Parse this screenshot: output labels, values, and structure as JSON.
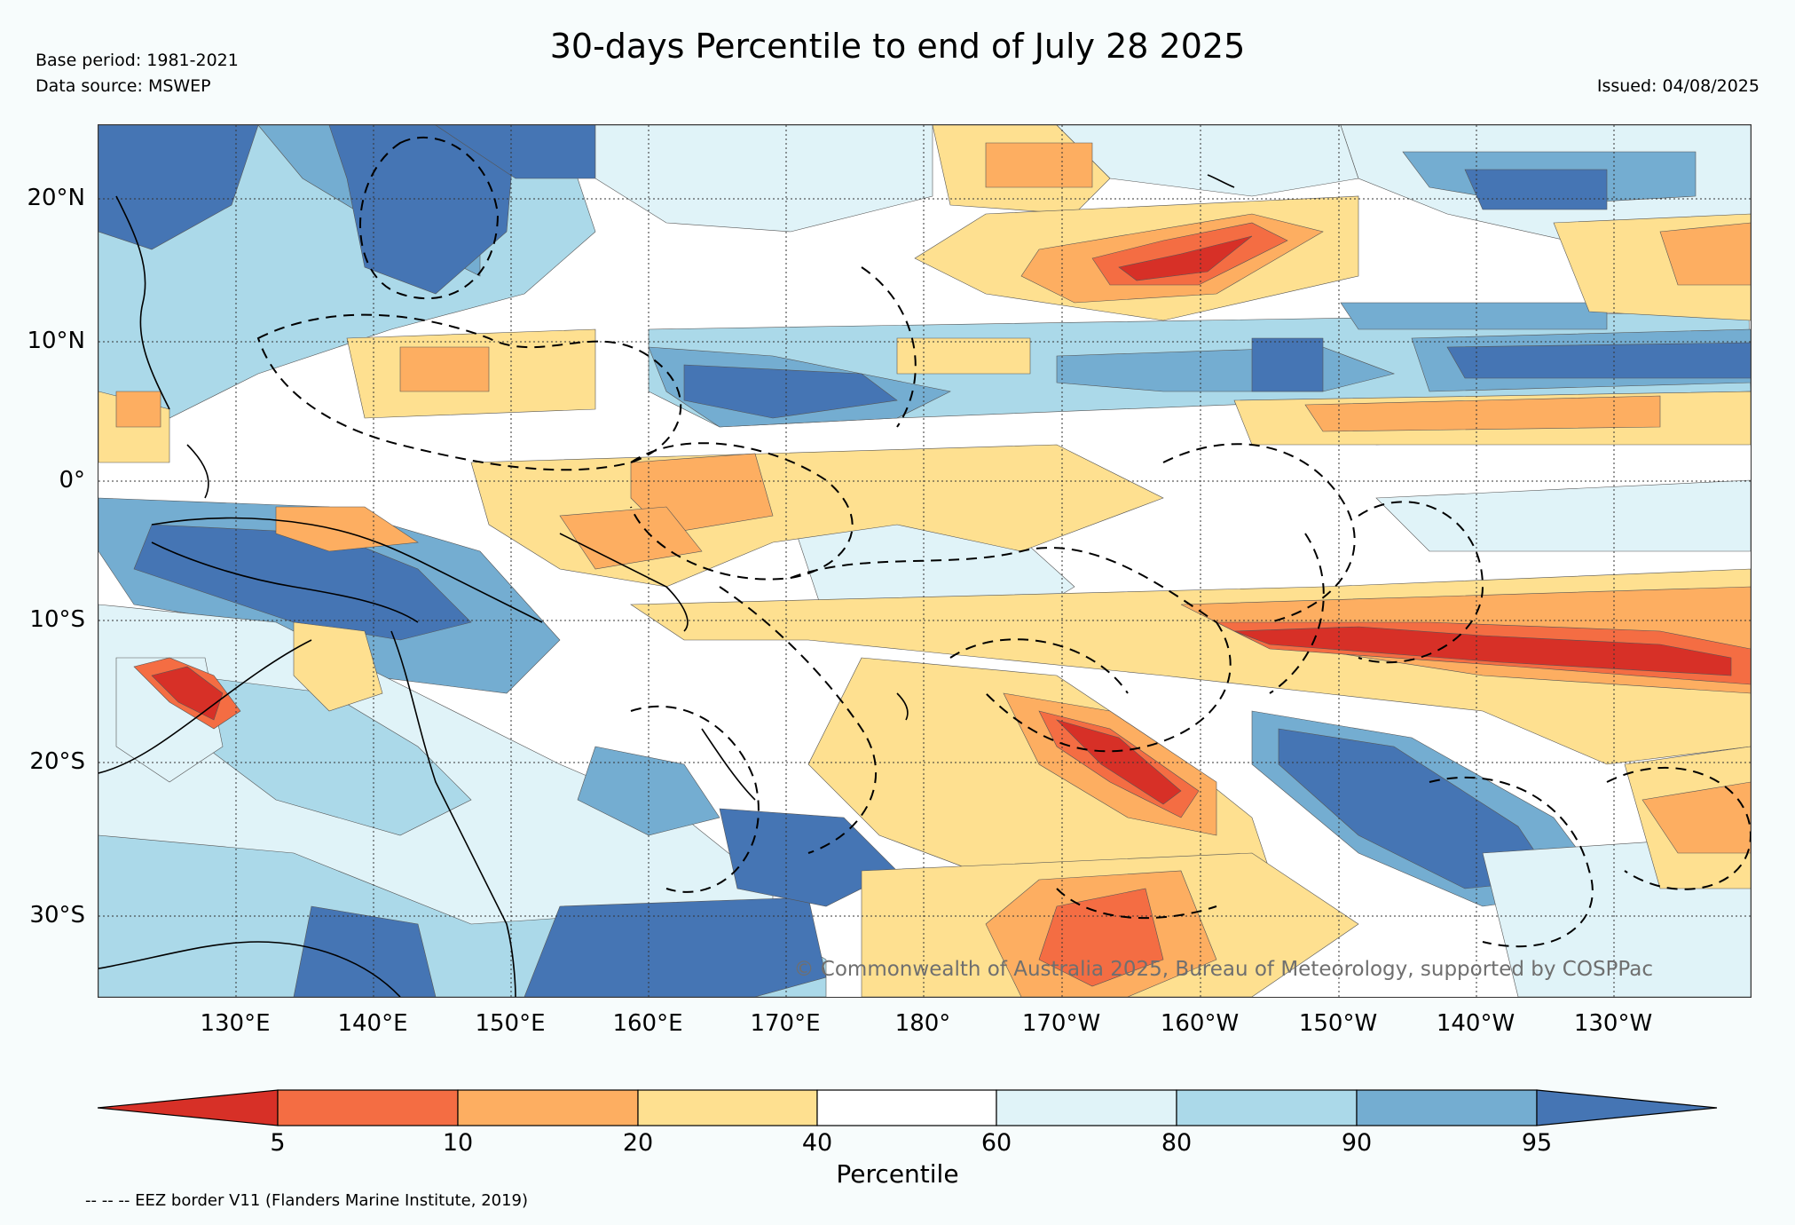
{
  "title": "30-days Percentile to end of July 28 2025",
  "meta": {
    "base_period": "Base period: 1981-2021",
    "data_source": "Data source: MSWEP",
    "issued": "Issued: 04/08/2025"
  },
  "map": {
    "lat_labels": [
      "20°N",
      "10°N",
      "0°",
      "10°S",
      "20°S",
      "30°S"
    ],
    "lon_labels": [
      "130°E",
      "140°E",
      "150°E",
      "160°E",
      "170°E",
      "180°",
      "170°W",
      "160°W",
      "150°W",
      "140°W",
      "130°W"
    ],
    "copyright": "© Commonwealth of Australia 2025, Bureau of Meteorology, supported by COSPPac"
  },
  "legend": {
    "label": "Percentile",
    "ticks": [
      "5",
      "10",
      "20",
      "40",
      "60",
      "80",
      "90",
      "95"
    ],
    "colors": [
      "#d73027",
      "#f46d43",
      "#fdae61",
      "#fee090",
      "#ffffff",
      "#e0f3f8",
      "#abd9e9",
      "#74add1",
      "#4575b4"
    ]
  },
  "footnote": "-- -- -- EEZ border V11 (Flanders Marine Institute, 2019)"
}
